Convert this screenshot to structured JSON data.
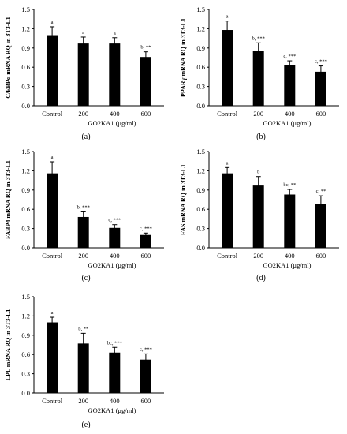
{
  "figure": {
    "panels": [
      "(a)",
      "(b)",
      "(c)",
      "(d)",
      "(e)"
    ]
  },
  "chart_data": [
    {
      "type": "bar",
      "panel": "(a)",
      "categories": [
        "Control",
        "200",
        "400",
        "600"
      ],
      "values": [
        1.1,
        0.97,
        0.97,
        0.76
      ],
      "errors": [
        0.13,
        0.1,
        0.09,
        0.08
      ],
      "annotations": [
        "a",
        "a",
        "a",
        "b, **"
      ],
      "ylabel": "C/EBPα mRNA RQ in 3T3-L1",
      "xlabel": "GO2KA1 (μg/ml)",
      "ylim": [
        0,
        1.5
      ],
      "yticks": [
        "0.0",
        "0.3",
        "0.6",
        "0.9",
        "1.2",
        "1.5"
      ]
    },
    {
      "type": "bar",
      "panel": "(b)",
      "categories": [
        "Control",
        "200",
        "400",
        "600"
      ],
      "values": [
        1.18,
        0.85,
        0.63,
        0.53
      ],
      "errors": [
        0.14,
        0.13,
        0.07,
        0.09
      ],
      "annotations": [
        "a",
        "b, ***",
        "c, ***",
        "c, ***"
      ],
      "ylabel": "PPARγ mRNA RQ in 3T3-L1",
      "xlabel": "GO2KA1 (μg/ml)",
      "ylim": [
        0,
        1.5
      ],
      "yticks": [
        "0.0",
        "0.3",
        "0.6",
        "0.9",
        "1.2",
        "1.5"
      ]
    },
    {
      "type": "bar",
      "panel": "(c)",
      "categories": [
        "Control",
        "200",
        "400",
        "600"
      ],
      "values": [
        1.16,
        0.48,
        0.31,
        0.2
      ],
      "errors": [
        0.18,
        0.08,
        0.05,
        0.03
      ],
      "annotations": [
        "a",
        "b, ***",
        "c, ***",
        "c, ***"
      ],
      "ylabel": "FABP4 mRNA RQ in 3T3-L1",
      "xlabel": "GO2KA1 (μg/ml)",
      "ylim": [
        0,
        1.5
      ],
      "yticks": [
        "0.0",
        "0.3",
        "0.6",
        "0.9",
        "1.2",
        "1.5"
      ]
    },
    {
      "type": "bar",
      "panel": "(d)",
      "categories": [
        "Control",
        "200",
        "400",
        "600"
      ],
      "values": [
        1.16,
        0.97,
        0.83,
        0.68
      ],
      "errors": [
        0.09,
        0.14,
        0.08,
        0.13
      ],
      "annotations": [
        "a",
        "b",
        "bc, **",
        "c, **"
      ],
      "ylabel": "FAS mRNA RQ in 3T3-L1",
      "xlabel": "GO2KA1 (μg/ml)",
      "ylim": [
        0,
        1.5
      ],
      "yticks": [
        "0.0",
        "0.3",
        "0.6",
        "0.9",
        "1.2",
        "1.5"
      ]
    },
    {
      "type": "bar",
      "panel": "(e)",
      "categories": [
        "Control",
        "200",
        "400",
        "600"
      ],
      "values": [
        1.1,
        0.77,
        0.63,
        0.52
      ],
      "errors": [
        0.08,
        0.16,
        0.08,
        0.09
      ],
      "annotations": [
        "a",
        "b, **",
        "bc, ***",
        "c, ***"
      ],
      "ylabel": "LPL mRNA RQ in 3T3-L1",
      "xlabel": "GO2KA1 (μg/ml)",
      "ylim": [
        0,
        1.5
      ],
      "yticks": [
        "0.0",
        "0.3",
        "0.6",
        "0.9",
        "1.2",
        "1.5"
      ]
    }
  ]
}
